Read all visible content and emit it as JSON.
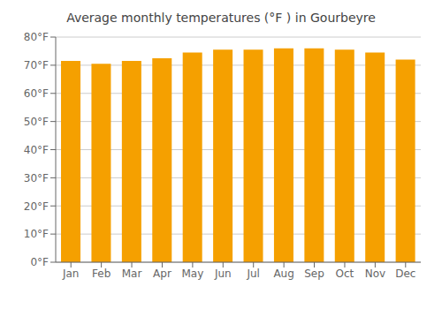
{
  "chart_data": {
    "type": "bar",
    "title": "Average monthly temperatures (°F ) in Gourbeyre",
    "categories": [
      "Jan",
      "Feb",
      "Mar",
      "Apr",
      "May",
      "Jun",
      "Jul",
      "Aug",
      "Sep",
      "Oct",
      "Nov",
      "Dec"
    ],
    "values": [
      71.5,
      70.5,
      71.5,
      72.5,
      74.5,
      75.5,
      75.5,
      76.0,
      76.0,
      75.5,
      74.5,
      72.0
    ],
    "color": "#F5A000",
    "ylim": [
      0,
      80
    ],
    "yticks": [
      {
        "value": 0,
        "label": "0°F"
      },
      {
        "value": 10,
        "label": "10°F"
      },
      {
        "value": 20,
        "label": "20°F"
      },
      {
        "value": 30,
        "label": "30°F"
      },
      {
        "value": 40,
        "label": "40°F"
      },
      {
        "value": 50,
        "label": "50°F"
      },
      {
        "value": 60,
        "label": "60°F"
      },
      {
        "value": 70,
        "label": "70°F"
      },
      {
        "value": 80,
        "label": "80°F"
      }
    ],
    "grid": true
  }
}
